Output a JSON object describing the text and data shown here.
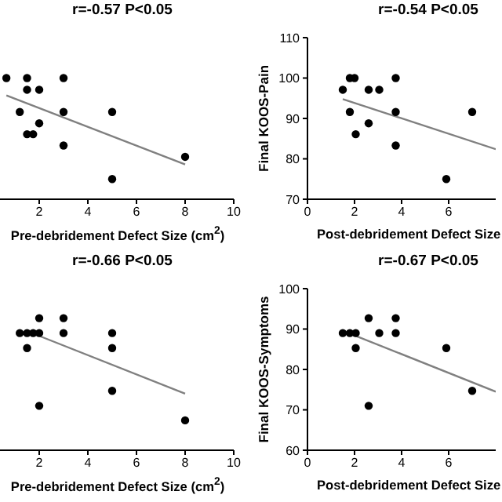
{
  "chart_data": [
    {
      "type": "scatter",
      "title": "r=-0.57 P<0.05",
      "xlabel": "Pre-debridement Defect Size (cm$^{2}$)",
      "xlim": [
        0,
        10
      ],
      "xticks": [
        2,
        4,
        6,
        8,
        10
      ],
      "ylim": [
        70,
        110
      ],
      "tick_labels": "x",
      "series": [
        {
          "type": "scatter",
          "marker": "circle",
          "color": "#000000",
          "x": [
            0.65,
            1.5,
            3,
            1.5,
            2,
            1.2,
            3,
            5,
            2,
            1.5,
            1.75,
            3,
            8,
            5
          ],
          "values": [
            100,
            100,
            100,
            97.1,
            97.1,
            91.6,
            91.6,
            91.6,
            88.8,
            86.1,
            86.1,
            83.3,
            80.5,
            75
          ]
        },
        {
          "type": "line",
          "color": "#808080",
          "x": [
            0.65,
            8
          ],
          "values": [
            95.7,
            78.6
          ]
        }
      ]
    },
    {
      "type": "scatter",
      "title": "r=-0.54 P<0.05",
      "xlabel": "Post-debridement Defect Size",
      "ylabel": "Final KOOS-Pain",
      "xlim": [
        0,
        8
      ],
      "xticks": [
        0,
        2,
        4,
        6
      ],
      "ylim": [
        70,
        110
      ],
      "yticks": [
        70,
        80,
        90,
        100,
        110
      ],
      "series": [
        {
          "type": "scatter",
          "marker": "circle",
          "color": "#000000",
          "x": [
            1.5,
            1.8,
            2,
            1.8,
            2.05,
            2.6,
            2.6,
            3.05,
            3.75,
            3.75,
            3.75,
            5.9,
            7
          ],
          "values": [
            97.1,
            100,
            100,
            91.6,
            86.1,
            97.1,
            88.8,
            97.1,
            100,
            91.6,
            83.3,
            75,
            91.6
          ]
        },
        {
          "type": "line",
          "color": "#808080",
          "x": [
            1.5,
            8
          ],
          "values": [
            94.8,
            82.4
          ]
        }
      ]
    },
    {
      "type": "scatter",
      "title": "r=-0.66 P<0.05",
      "xlabel": "Pre-debridement Defect Size (cm$^{2}$)",
      "xlim": [
        0,
        10
      ],
      "xticks": [
        2,
        4,
        6,
        8,
        10
      ],
      "ylim": [
        60,
        100
      ],
      "tick_labels": "x",
      "series": [
        {
          "type": "scatter",
          "marker": "circle",
          "color": "#000000",
          "x": [
            1.2,
            1.5,
            1.75,
            2,
            2,
            3,
            3,
            5,
            1.5,
            5,
            5,
            2,
            8
          ],
          "values": [
            89,
            89,
            89,
            89,
            92.7,
            92.7,
            89,
            89,
            85.3,
            85.3,
            74.7,
            71,
            67.4
          ]
        },
        {
          "type": "line",
          "color": "#808080",
          "x": [
            2,
            8
          ],
          "values": [
            88.3,
            74
          ]
        }
      ]
    },
    {
      "type": "scatter",
      "title": "r=-0.67 P<0.05",
      "xlabel": "Post-debridement Defect Size",
      "ylabel": "Final KOOS-Symptoms",
      "xlim": [
        0,
        8
      ],
      "xticks": [
        0,
        2,
        4,
        6
      ],
      "ylim": [
        60,
        100
      ],
      "yticks": [
        60,
        70,
        80,
        90,
        100
      ],
      "series": [
        {
          "type": "scatter",
          "marker": "circle",
          "color": "#000000",
          "x": [
            1.5,
            1.8,
            2.05,
            2.05,
            2.6,
            2.6,
            3.05,
            3.75,
            3.75,
            5.9,
            7
          ],
          "values": [
            89,
            89,
            89,
            85.3,
            92.7,
            71,
            89,
            92.7,
            89,
            85.3,
            74.7
          ]
        },
        {
          "type": "line",
          "color": "#808080",
          "x": [
            1.5,
            8
          ],
          "values": [
            89.6,
            74.5
          ]
        }
      ]
    }
  ]
}
